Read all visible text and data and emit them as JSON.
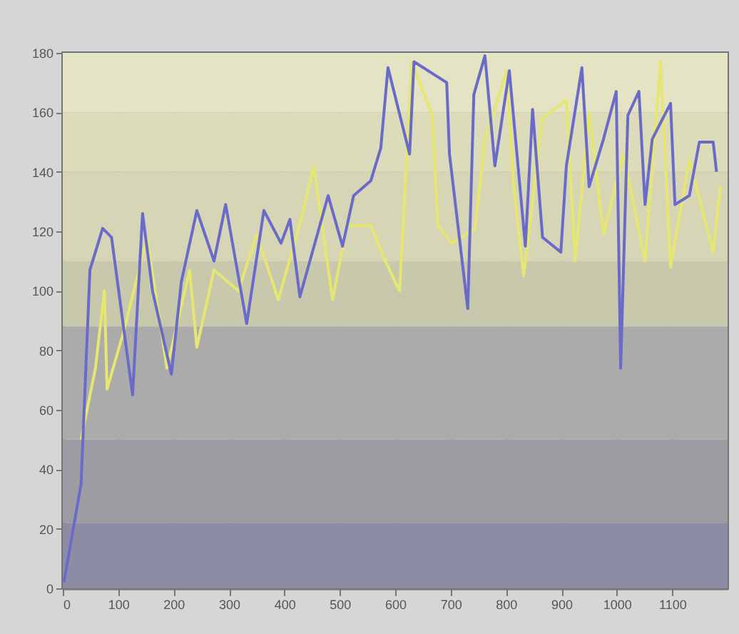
{
  "chart_data": {
    "type": "line",
    "xlim": [
      0,
      1200
    ],
    "ylim": [
      0,
      180
    ],
    "xticks": [
      0,
      100,
      200,
      300,
      400,
      500,
      600,
      700,
      800,
      900,
      1000,
      1100
    ],
    "yticks": [
      0,
      20,
      40,
      60,
      80,
      100,
      120,
      140,
      160,
      180
    ],
    "grid": true,
    "line_style": "solid",
    "marker": "none",
    "bands": [
      {
        "axis": "y",
        "from": 0,
        "to": 22,
        "color": "#8c8ca4"
      },
      {
        "axis": "y",
        "from": 22,
        "to": 50,
        "color": "#9c9ca2"
      },
      {
        "axis": "y",
        "from": 50,
        "to": 88,
        "color": "#ababab"
      },
      {
        "axis": "y",
        "from": 88,
        "to": 110,
        "color": "#c8c8ac"
      },
      {
        "axis": "y",
        "from": 110,
        "to": 140,
        "color": "#d6d6b6"
      },
      {
        "axis": "y",
        "from": 140,
        "to": 160,
        "color": "#dcdcbb"
      },
      {
        "axis": "y",
        "from": 160,
        "to": 180,
        "color": "#e4e4c4"
      }
    ],
    "series": [
      {
        "color": "#e6e672",
        "x": [
          33,
          59,
          75,
          80,
          111,
          152,
          188,
          229,
          242,
          273,
          317,
          350,
          389,
          433,
          453,
          487,
          513,
          556,
          582,
          608,
          630,
          667,
          677,
          703,
          744,
          762,
          801,
          814,
          832,
          866,
          909,
          925,
          950,
          976,
          1012,
          1051,
          1079,
          1097,
          1131,
          1174,
          1187
        ],
        "values": [
          50,
          74,
          100,
          67,
          87,
          118,
          74,
          107,
          81,
          107,
          100,
          119,
          97,
          126,
          142,
          97,
          122,
          122,
          110,
          100,
          177,
          159,
          122,
          116,
          121,
          151,
          174,
          135,
          105,
          158,
          164,
          110,
          160,
          119,
          146,
          110,
          177,
          108,
          144,
          113,
          135
        ]
      },
      {
        "color": "#6a6ac8",
        "x": [
          2,
          33,
          49,
          72,
          88,
          126,
          144,
          162,
          196,
          214,
          242,
          273,
          294,
          332,
          363,
          394,
          410,
          428,
          479,
          505,
          525,
          556,
          574,
          587,
          626,
          634,
          693,
          698,
          731,
          742,
          762,
          780,
          806,
          835,
          848,
          866,
          899,
          909,
          937,
          950,
          976,
          999,
          1007,
          1020,
          1040,
          1051,
          1064,
          1097,
          1105,
          1131,
          1149,
          1174,
          1180
        ],
        "values": [
          2,
          35,
          107,
          121,
          118,
          65,
          126,
          100,
          72,
          103,
          127,
          110,
          129,
          89,
          127,
          116,
          124,
          98,
          132,
          115,
          132,
          137,
          148,
          175,
          146,
          177,
          170,
          146,
          94,
          166,
          179,
          142,
          174,
          115,
          161,
          118,
          113,
          142,
          175,
          135,
          151,
          167,
          74,
          159,
          167,
          129,
          151,
          163,
          129,
          132,
          150,
          150,
          140
        ]
      }
    ]
  }
}
